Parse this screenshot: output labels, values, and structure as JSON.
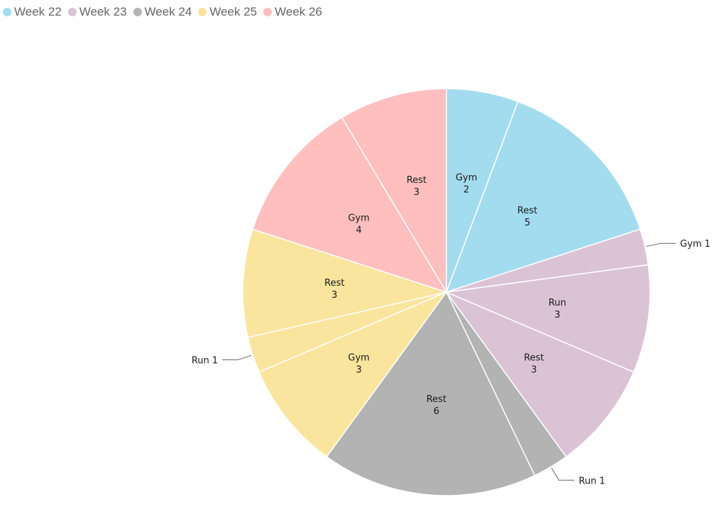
{
  "chart_data": {
    "type": "pie",
    "title": "",
    "legend": {
      "position": "top-left",
      "items": [
        {
          "name": "Week 22",
          "color": "#a3dcee"
        },
        {
          "name": "Week 23",
          "color": "#dbc3d6"
        },
        {
          "name": "Week 24",
          "color": "#b3b3b3"
        },
        {
          "name": "Week 25",
          "color": "#f9e59e"
        },
        {
          "name": "Week 26",
          "color": "#ffbfbf"
        }
      ]
    },
    "slices": [
      {
        "week": "Week 22",
        "activity": "Gym",
        "value": 2,
        "color": "#a3dcee",
        "label_style": "inside"
      },
      {
        "week": "Week 22",
        "activity": "Rest",
        "value": 5,
        "color": "#a3dcee",
        "label_style": "inside"
      },
      {
        "week": "Week 23",
        "activity": "Gym",
        "value": 1,
        "color": "#dbc3d6",
        "label_style": "outside"
      },
      {
        "week": "Week 23",
        "activity": "Run",
        "value": 3,
        "color": "#dbc3d6",
        "label_style": "inside"
      },
      {
        "week": "Week 23",
        "activity": "Rest",
        "value": 3,
        "color": "#dbc3d6",
        "label_style": "inside"
      },
      {
        "week": "Week 24",
        "activity": "Run",
        "value": 1,
        "color": "#b3b3b3",
        "label_style": "outside"
      },
      {
        "week": "Week 24",
        "activity": "Rest",
        "value": 6,
        "color": "#b3b3b3",
        "label_style": "inside"
      },
      {
        "week": "Week 25",
        "activity": "Gym",
        "value": 3,
        "color": "#f9e59e",
        "label_style": "inside"
      },
      {
        "week": "Week 25",
        "activity": "Run",
        "value": 1,
        "color": "#f9e59e",
        "label_style": "outside"
      },
      {
        "week": "Week 25",
        "activity": "Rest",
        "value": 3,
        "color": "#f9e59e",
        "label_style": "inside"
      },
      {
        "week": "Week 26",
        "activity": "Gym",
        "value": 4,
        "color": "#ffbfbf",
        "label_style": "inside"
      },
      {
        "week": "Week 26",
        "activity": "Rest",
        "value": 3,
        "color": "#ffbfbf",
        "label_style": "inside"
      }
    ]
  }
}
